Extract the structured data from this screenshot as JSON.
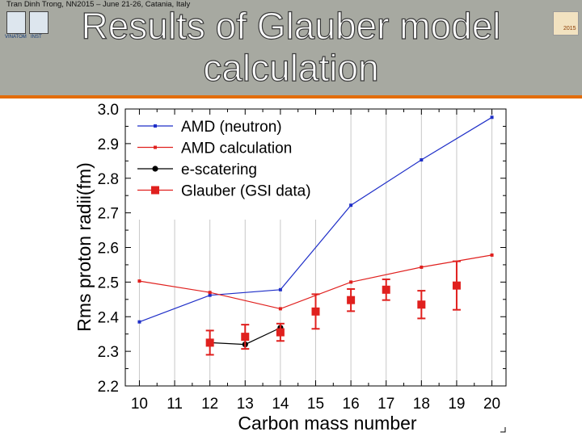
{
  "header": {
    "conference": "Tran Dinh Trong, NN2015 – June 21-26, Catania, Italy",
    "title_line1": "Results of Glauber model",
    "title_line2": "calculation",
    "logo_left1_text": "VINATOM",
    "logo_left2_text": "INST",
    "logo_right_text": "2015"
  },
  "colors": {
    "header_band": "#a7a9a1",
    "header_rule": "#e36c0a",
    "blue": "#1f2fc8",
    "red": "#e0201e",
    "black": "#000000"
  },
  "chart_data": {
    "type": "line",
    "xlabel": "Carbon mass number",
    "ylabel": "Rms proton radii(fm)",
    "xlim": [
      9.6,
      20.4
    ],
    "ylim": [
      2.2,
      3.0
    ],
    "xticks": [
      10,
      11,
      12,
      13,
      14,
      15,
      16,
      17,
      18,
      19,
      20
    ],
    "yticks": [
      2.2,
      2.3,
      2.4,
      2.5,
      2.6,
      2.7,
      2.8,
      2.9,
      3.0
    ],
    "ytick_labels": [
      "2.2",
      "2.3",
      "2.4",
      "2.5",
      "2.6",
      "2.7",
      "2.8",
      "2.9",
      "3.0"
    ],
    "legend_position": "top-left",
    "series": [
      {
        "name": "AMD (neutron)",
        "color": "#1f2fc8",
        "marker": "small-square",
        "line": true,
        "x": [
          10,
          12,
          14,
          16,
          18,
          20
        ],
        "y": [
          2.385,
          2.462,
          2.478,
          2.722,
          2.853,
          2.976
        ]
      },
      {
        "name": "AMD calculation",
        "color": "#e0201e",
        "marker": "small-square",
        "line": true,
        "x": [
          10,
          12,
          14,
          16,
          18,
          20
        ],
        "y": [
          2.503,
          2.47,
          2.423,
          2.5,
          2.543,
          2.578
        ]
      },
      {
        "name": "e-scatering",
        "color": "#000000",
        "marker": "circle",
        "line": true,
        "x": [
          12,
          13,
          14
        ],
        "y": [
          2.325,
          2.32,
          2.368
        ]
      },
      {
        "name": "Glauber (GSI data)",
        "color": "#e0201e",
        "marker": "big-square",
        "line": false,
        "x": [
          12,
          13,
          14,
          15,
          16,
          17,
          18,
          19
        ],
        "y": [
          2.325,
          2.342,
          2.355,
          2.415,
          2.448,
          2.478,
          2.435,
          2.49
        ],
        "err": [
          0.035,
          0.035,
          0.025,
          0.05,
          0.032,
          0.03,
          0.04,
          0.07
        ]
      }
    ]
  }
}
